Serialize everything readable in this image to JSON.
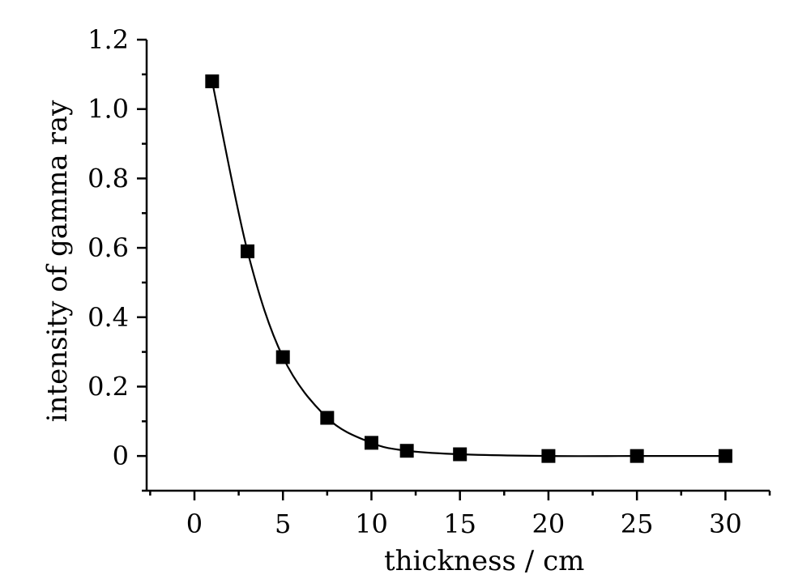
{
  "chart_data": {
    "type": "line",
    "title": "",
    "xlabel": "thickness / cm",
    "ylabel": "intensity of gamma ray",
    "xlim": [
      -2.7,
      32.5
    ],
    "ylim": [
      -0.1,
      1.2
    ],
    "x_ticks": [
      0,
      5,
      10,
      15,
      20,
      25,
      30
    ],
    "x_tick_labels": [
      "0",
      "5",
      "10",
      "15",
      "20",
      "25",
      "30"
    ],
    "y_ticks": [
      0,
      0.2,
      0.4,
      0.6,
      0.8,
      1.0,
      1.2
    ],
    "y_tick_labels": [
      "0",
      "0.2",
      "0.4",
      "0.6",
      "0.8",
      "1.0",
      "1.2"
    ],
    "grid": false,
    "legend": "none",
    "marker": "square",
    "series": [
      {
        "x": [
          1,
          3,
          5,
          7.5,
          10,
          12,
          15,
          20,
          25,
          30
        ],
        "y": [
          1.08,
          0.59,
          0.285,
          0.11,
          0.038,
          0.015,
          0.005,
          0.0,
          0.0,
          0.0
        ],
        "color": "#000000"
      }
    ]
  }
}
